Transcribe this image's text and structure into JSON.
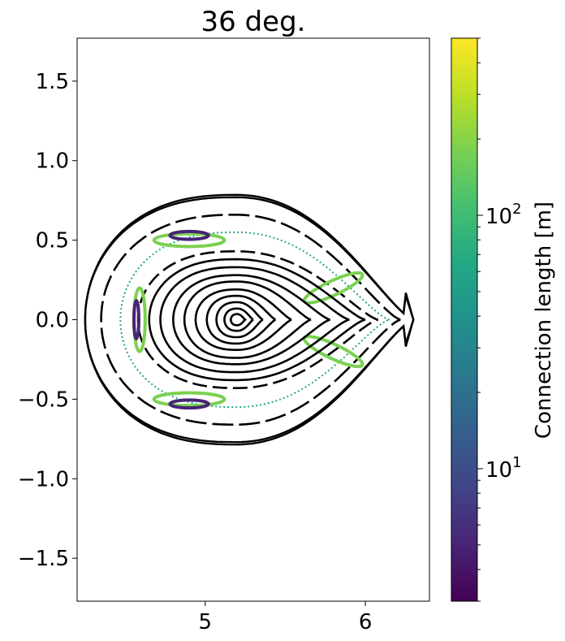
{
  "chart_data": {
    "type": "scatter",
    "title": "36 deg.",
    "xlabel": "",
    "ylabel": "",
    "xlim": [
      4.2,
      6.4
    ],
    "ylim": [
      -1.77,
      1.77
    ],
    "x_ticks": [
      5,
      6
    ],
    "x_tick_labels": [
      "5",
      "6"
    ],
    "y_ticks": [
      1.5,
      1.0,
      0.5,
      0.0,
      -0.5,
      -1.0,
      -1.5
    ],
    "y_tick_labels": [
      "1.5",
      "1.0",
      "0.5",
      "0.0",
      "−0.5",
      "−1.0",
      "−1.5"
    ],
    "grid": false,
    "axis_center": [
      5.2,
      0.0
    ],
    "closed_surfaces_color": "#000000",
    "closed_surfaces": [
      {
        "r_out": 0.05,
        "r_in": 0.04,
        "h": 0.035
      },
      {
        "r_out": 0.1,
        "r_in": 0.08,
        "h": 0.07
      },
      {
        "r_out": 0.16,
        "r_in": 0.13,
        "h": 0.11
      },
      {
        "r_out": 0.24,
        "r_in": 0.19,
        "h": 0.15
      },
      {
        "r_out": 0.34,
        "r_in": 0.26,
        "h": 0.19
      },
      {
        "r_out": 0.46,
        "r_in": 0.33,
        "h": 0.24
      },
      {
        "r_out": 0.58,
        "r_in": 0.4,
        "h": 0.28
      },
      {
        "r_out": 0.7,
        "r_in": 0.48,
        "h": 0.33
      },
      {
        "r_out": 0.8,
        "r_in": 0.55,
        "h": 0.38
      }
    ],
    "dashed_surfaces": [
      {
        "r_out": 0.88,
        "r_in": 0.62,
        "h": 0.43,
        "dash": "18 7"
      },
      {
        "r_out": 1.02,
        "r_in": 0.85,
        "h": 0.66,
        "dash": "26 7"
      }
    ],
    "boundary_surfaces": [
      {
        "r_out": 1.1,
        "r_in": 0.95,
        "h": 0.785,
        "tip": 0.16
      },
      {
        "r_out": 1.1,
        "r_in": 0.95,
        "h": 0.77,
        "tip": 0.18
      }
    ],
    "islands": [
      {
        "x": 4.59,
        "y": 0.0,
        "rx": 0.035,
        "ry": 0.2,
        "color_value": 150
      },
      {
        "x": 4.9,
        "y": 0.5,
        "rx": 0.22,
        "ry": 0.04,
        "color_value": 150
      },
      {
        "x": 4.9,
        "y": -0.5,
        "rx": 0.22,
        "ry": 0.04,
        "color_value": 150
      },
      {
        "x": 5.8,
        "y": 0.2,
        "rx": 0.2,
        "ry": 0.045,
        "angle_deg": -25,
        "color_value": 150
      },
      {
        "x": 5.8,
        "y": -0.2,
        "rx": 0.2,
        "ry": 0.045,
        "angle_deg": 25,
        "color_value": 150
      },
      {
        "x": 4.9,
        "y": 0.53,
        "rx": 0.12,
        "ry": 0.025,
        "color_value": 4
      },
      {
        "x": 4.9,
        "y": -0.53,
        "rx": 0.12,
        "ry": 0.025,
        "color_value": 4
      },
      {
        "x": 4.57,
        "y": 0.0,
        "rx": 0.015,
        "ry": 0.12,
        "color_value": 4
      }
    ],
    "chaotic_band_color_value": 60,
    "colorbar": {
      "label": "Connection length [m]",
      "scale": "log",
      "colormap": "viridis",
      "vmin": 3,
      "vmax": 500,
      "ticks": [
        10,
        100
      ],
      "tick_labels": [
        {
          "base": "10",
          "exp": "1"
        },
        {
          "base": "10",
          "exp": "2"
        }
      ]
    }
  }
}
